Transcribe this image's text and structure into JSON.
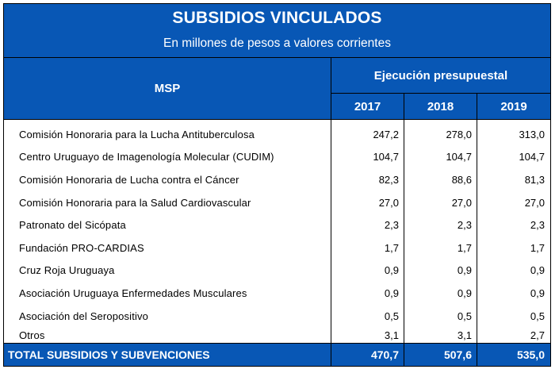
{
  "header": {
    "title": "SUBSIDIOS VINCULADOS",
    "subtitle": "En millones de pesos a valores corrientes"
  },
  "columns": {
    "row_header": "MSP",
    "group_header": "Ejecución presupuestal",
    "years": [
      "2017",
      "2018",
      "2019"
    ]
  },
  "rows": [
    {
      "name": "Comisión Honoraria para la Lucha Antituberculosa",
      "values": [
        "247,2",
        "278,0",
        "313,0"
      ]
    },
    {
      "name": "Centro Uruguayo de Imagenología Molecular (CUDIM)",
      "values": [
        "104,7",
        "104,7",
        "104,7"
      ]
    },
    {
      "name": "Comisión Honoraria de Lucha contra el Cáncer",
      "values": [
        "82,3",
        "88,6",
        "81,3"
      ]
    },
    {
      "name": "Comisión Honoraria para la Salud Cardiovascular",
      "values": [
        "27,0",
        "27,0",
        "27,0"
      ]
    },
    {
      "name": "Patronato del Sicópata",
      "values": [
        "2,3",
        "2,3",
        "2,3"
      ]
    },
    {
      "name": "Fundación PRO-CARDIAS",
      "values": [
        "1,7",
        "1,7",
        "1,7"
      ]
    },
    {
      "name": "Cruz Roja Uruguaya",
      "values": [
        "0,9",
        "0,9",
        "0,9"
      ]
    },
    {
      "name": "Asociación Uruguaya Enfermedades Musculares",
      "values": [
        "0,9",
        "0,9",
        "0,9"
      ]
    },
    {
      "name": "Asociación del Seropositivo",
      "values": [
        "0,5",
        "0,5",
        "0,5"
      ]
    },
    {
      "name": "Otros",
      "values": [
        "3,1",
        "3,1",
        "2,7"
      ]
    }
  ],
  "total": {
    "name": "TOTAL SUBSIDIOS Y SUBVENCIONES",
    "values": [
      "470,7",
      "507,6",
      "535,0"
    ]
  },
  "colors": {
    "header_blue": "#0857b5",
    "header_text": "#ffffff"
  }
}
